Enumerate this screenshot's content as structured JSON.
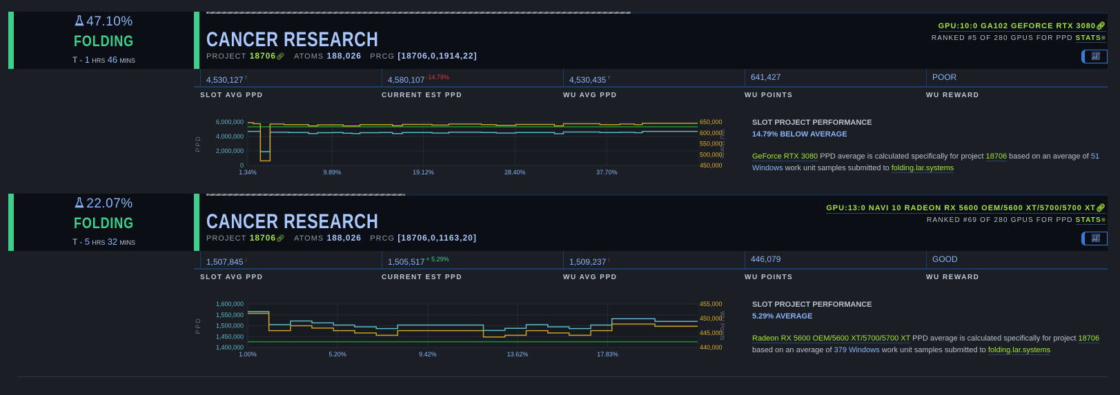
{
  "colors": {
    "background": "#1b1e25",
    "card": "#0b0e14",
    "folding_green": "#3ecf8e",
    "accent_blue": "#8ab4f8",
    "lime": "#a3e635",
    "ppd_line": "#5fb8c8",
    "points_line": "#c9a227",
    "average_line": "#1f7a2a",
    "down_red": "#e03a3a"
  },
  "slots": [
    {
      "progress_percent": "47.10%",
      "progress_value": 47.1,
      "status": "FOLDING",
      "eta": {
        "prefix": "T - ",
        "hours": "1",
        "hours_unit": "HRS",
        "mins": "46",
        "mins_unit": "MINS"
      },
      "title": "CANCER RESEARCH",
      "project_label": "PROJECT",
      "project": "18706",
      "atoms_label": "ATOMS",
      "atoms": "188,026",
      "prcg_label": "PRCG",
      "prcg": "[18706,0,1914,22]",
      "gpu": "GPU:10:0 GA102 GEFORCE RTX 3080",
      "rank_text": "RANKED #5 OF 280 GPUS FOR PPD",
      "stats_link": "STATS",
      "stats": [
        {
          "value": "4,530,127",
          "delta": "↑",
          "dir": "up"
        },
        {
          "value": "4,580,107",
          "delta": "-14.79%",
          "dir": "down"
        },
        {
          "value": "4,530,435",
          "delta": "↑",
          "dir": "up"
        },
        {
          "value": "641,427",
          "delta": "",
          "dir": ""
        },
        {
          "value": "POOR",
          "delta": "",
          "dir": ""
        }
      ],
      "stat_labels": [
        "SLOT AVG PPD",
        "CURRENT EST PPD",
        "WU AVG PPD",
        "WU POINTS",
        "WU REWARD"
      ],
      "performance": {
        "heading": "SLOT PROJECT PERFORMANCE",
        "summary": "14.79% BELOW AVERAGE",
        "gpu_name": "GeForce RTX 3080",
        "text1": " PPD average is calculated specifically for project ",
        "project": "18706",
        "text2": " based on an average of ",
        "samples": "51",
        "os": "Windows",
        "text3": " work unit samples submitted to ",
        "site": "folding.lar.systems"
      }
    },
    {
      "progress_percent": "22.07%",
      "progress_value": 22.07,
      "status": "FOLDING",
      "eta": {
        "prefix": "T - ",
        "hours": "5",
        "hours_unit": "HRS",
        "mins": "32",
        "mins_unit": "MINS"
      },
      "title": "CANCER RESEARCH",
      "project_label": "PROJECT",
      "project": "18706",
      "atoms_label": "ATOMS",
      "atoms": "188,026",
      "prcg_label": "PRCG",
      "prcg": "[18706,0,1163,20]",
      "gpu": "GPU:13:0 NAVI 10 RADEON RX 5600 OEM/5600 XT/5700/5700 XT",
      "rank_text": "RANKED #69 OF 280 GPUS FOR PPD",
      "stats_link": "STATS",
      "stats": [
        {
          "value": "1,507,845",
          "delta": "↓",
          "dir": "down"
        },
        {
          "value": "1,505,517",
          "delta": "+ 5.29%",
          "dir": "up"
        },
        {
          "value": "1,509,237",
          "delta": "↓",
          "dir": "down"
        },
        {
          "value": "446,079",
          "delta": "",
          "dir": ""
        },
        {
          "value": "GOOD",
          "delta": "",
          "dir": ""
        }
      ],
      "stat_labels": [
        "SLOT AVG PPD",
        "CURRENT EST PPD",
        "WU AVG PPD",
        "WU POINTS",
        "WU REWARD"
      ],
      "performance": {
        "heading": "SLOT PROJECT PERFORMANCE",
        "summary": "5.29% AVERAGE",
        "gpu_name": "Radeon RX 5600 OEM/5600 XT/5700/5700 XT",
        "text1": " PPD average is calculated specifically for project ",
        "project": "18706",
        "text2": " based on an average of ",
        "samples": "379",
        "os": "Windows",
        "text3": " work unit samples submitted to ",
        "site": "folding.lar.systems"
      }
    }
  ],
  "chart_data": [
    {
      "type": "line",
      "step": true,
      "ylabel": "PPD",
      "y2label": "WU Points",
      "xlim": [
        1.34,
        46.9
      ],
      "ylim": [
        0,
        6000000
      ],
      "y2lim": [
        450000,
        650000
      ],
      "x_ticks": [
        "1.34%",
        "9.89%",
        "19.12%",
        "28.40%",
        "37.70%"
      ],
      "x_tick_values": [
        1.34,
        9.89,
        19.12,
        28.4,
        37.7
      ],
      "y_ticks": [
        "0",
        "2,000,000",
        "4,000,000",
        "6,000,000"
      ],
      "y_tick_values": [
        0,
        2000000,
        4000000,
        6000000
      ],
      "y2_ticks": [
        "450,000",
        "500,000",
        "550,000",
        "600,000",
        "650,000"
      ],
      "y2_tick_values": [
        450000,
        500000,
        550000,
        600000,
        650000
      ],
      "grid": true,
      "average_ppd": 5340000,
      "series": [
        {
          "axis": "left",
          "color": "#5fb8c8",
          "x": [
            1.34,
            2.62,
            3.6,
            5.5,
            7.5,
            8.4,
            10.0,
            11.0,
            11.9,
            12.7,
            14.7,
            16.0,
            17.0,
            20.0,
            21.7,
            25.0,
            26.5,
            28.5,
            32.4,
            33.3,
            37.0,
            39.0,
            40.5,
            41.3
          ],
          "y": [
            4700000,
            1900000,
            4600000,
            4550000,
            4400000,
            4520000,
            4550000,
            4450000,
            4400000,
            4520000,
            4550000,
            4400000,
            4550000,
            4480000,
            4600000,
            4550000,
            4480000,
            4550000,
            4380000,
            4620000,
            4550000,
            4580000,
            4520000,
            4700000
          ]
        },
        {
          "axis": "right",
          "color": "#c9a227",
          "x": [
            1.34,
            1.9,
            2.62,
            3.6,
            5.0,
            7.5,
            8.4,
            11.0,
            12.7,
            16.0,
            17.0,
            20.0,
            21.7,
            25.0,
            26.5,
            28.5,
            32.4,
            33.3,
            37.0,
            39.0,
            40.5,
            41.3
          ],
          "y": [
            647000,
            642000,
            471000,
            641000,
            638000,
            632000,
            637000,
            632000,
            638000,
            633000,
            639000,
            636000,
            641000,
            638000,
            635000,
            639000,
            632000,
            642000,
            638000,
            641000,
            638000,
            644000
          ]
        }
      ]
    },
    {
      "type": "line",
      "step": true,
      "ylabel": "PPD",
      "y2label": "WU Points",
      "xlim": [
        1.0,
        22.04
      ],
      "ylim": [
        1400000,
        1600000
      ],
      "y2lim": [
        440000,
        455000
      ],
      "x_ticks": [
        "1.00%",
        "5.20%",
        "9.42%",
        "13.62%",
        "17.83%"
      ],
      "x_tick_values": [
        1.0,
        5.2,
        9.42,
        13.62,
        17.83
      ],
      "y_ticks": [
        "1,400,000",
        "1,450,000",
        "1,500,000",
        "1,550,000",
        "1,600,000"
      ],
      "y_tick_values": [
        1400000,
        1450000,
        1500000,
        1550000,
        1600000
      ],
      "y2_ticks": [
        "440,000",
        "445,000",
        "450,000",
        "455,000"
      ],
      "y2_tick_values": [
        440000,
        445000,
        450000,
        455000
      ],
      "grid": true,
      "average_ppd": 1426000,
      "series": [
        {
          "axis": "left",
          "color": "#5fb8c8",
          "x": [
            1.0,
            1.99,
            3.0,
            4.0,
            5.01,
            6.0,
            7.01,
            8.01,
            12.02,
            13.03,
            14.02,
            15.03,
            16.03,
            17.04,
            18.03,
            20.04
          ],
          "y": [
            1565000,
            1505000,
            1522000,
            1513000,
            1503000,
            1495000,
            1487000,
            1503000,
            1478000,
            1488000,
            1505000,
            1495000,
            1487000,
            1503000,
            1532000,
            1520000
          ]
        },
        {
          "axis": "right",
          "color": "#c9a227",
          "x": [
            1.0,
            1.99,
            3.0,
            4.0,
            5.01,
            6.0,
            7.01,
            8.01,
            12.02,
            13.03,
            14.02,
            15.03,
            16.03,
            17.04,
            18.03,
            20.04
          ],
          "y": [
            451800,
            445800,
            447500,
            446700,
            445800,
            445000,
            444200,
            445800,
            443600,
            444200,
            445800,
            445000,
            444200,
            445800,
            448100,
            447300
          ]
        }
      ]
    }
  ]
}
